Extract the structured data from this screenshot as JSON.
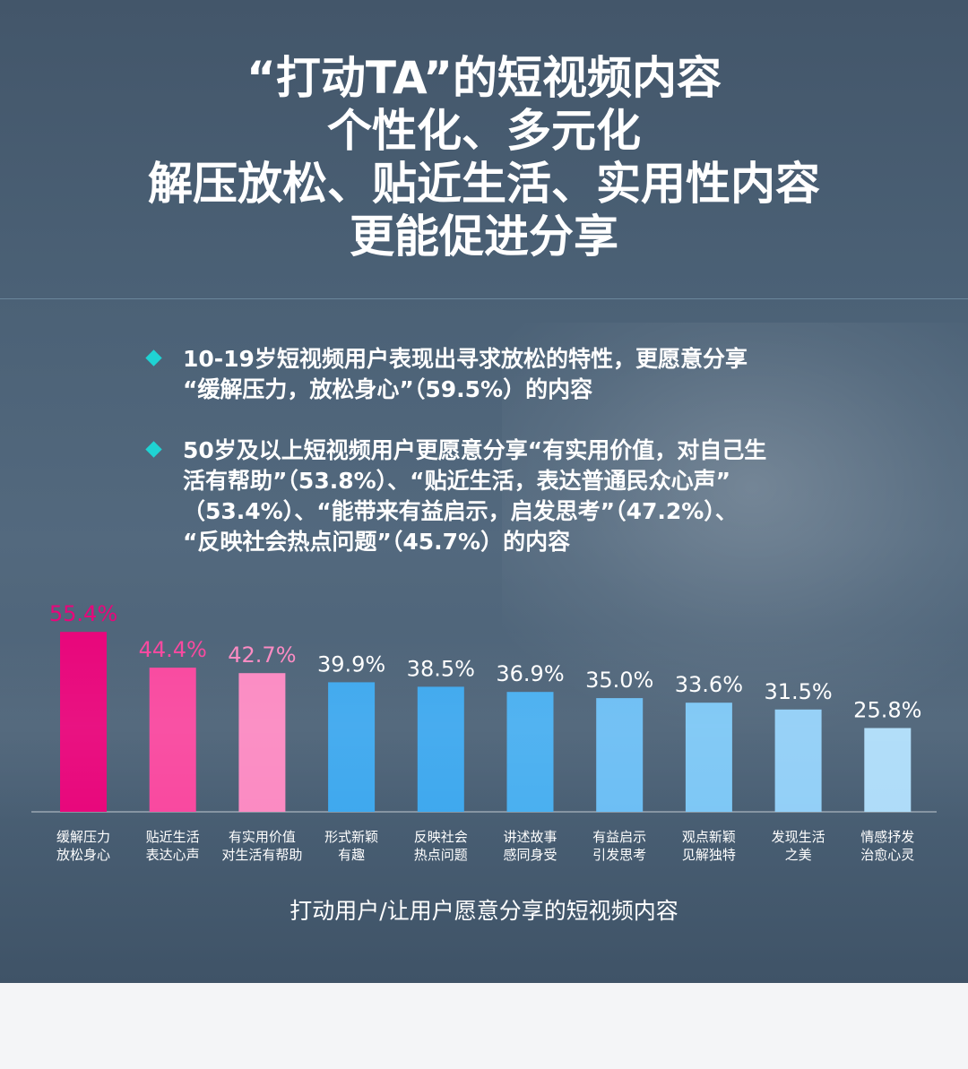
{
  "headline": [
    "“打动TA”的短视频内容",
    "个性化、多元化",
    "解压放松、贴近生活、实用性内容",
    "更能促进分享"
  ],
  "bullets": [
    {
      "lines": [
        "10-19岁短视频用户表现出寻求放松的特性，更愿意分享",
        "“缓解压力，放松身心”（59.5%）的内容"
      ]
    },
    {
      "lines": [
        "50岁及以上短视频用户更愿意分享“有实用价值，对自己生",
        "活有帮助”（53.8%）、“贴近生活，表达普通民众心声”",
        "（53.4%）、“能带来有益启示，启发思考”（47.2%）、",
        "“反映社会热点问题”（45.7%）的内容"
      ]
    }
  ],
  "colors": {
    "diamond": "#1fd3d3",
    "bars": [
      "#e8067b",
      "#f9489f",
      "#fb8ac2",
      "#3ea8ee",
      "#3ea8ee",
      "#49aff0",
      "#6cbef4",
      "#7dc7f5",
      "#92cff7",
      "#aedcf9"
    ],
    "value_labels": [
      "#e8067b",
      "#f9489f",
      "#fb8ac2",
      "#ffffff",
      "#ffffff",
      "#ffffff",
      "#ffffff",
      "#ffffff",
      "#ffffff",
      "#ffffff"
    ]
  },
  "chart_data": {
    "type": "bar",
    "title": "打动用户/让用户愿意分享的短视频内容",
    "categories": [
      [
        "缓解压力",
        "放松身心"
      ],
      [
        "贴近生活",
        "表达心声"
      ],
      [
        "有实用价值",
        "对生活有帮助"
      ],
      [
        "形式新颖",
        "有趣"
      ],
      [
        "反映社会",
        "热点问题"
      ],
      [
        "讲述故事",
        "感同身受"
      ],
      [
        "有益启示",
        "引发思考"
      ],
      [
        "观点新颖",
        "见解独特"
      ],
      [
        "发现生活",
        "之美"
      ],
      [
        "情感抒发",
        "治愈心灵"
      ]
    ],
    "values": [
      55.4,
      44.4,
      42.7,
      39.9,
      38.5,
      36.9,
      35.0,
      33.6,
      31.5,
      25.8
    ],
    "value_labels": [
      "55.4%",
      "44.4%",
      "42.7%",
      "39.9%",
      "38.5%",
      "36.9%",
      "35.0%",
      "33.6%",
      "31.5%",
      "25.8%"
    ],
    "ylim": [
      0,
      60
    ],
    "grid": false,
    "legend": "none"
  }
}
